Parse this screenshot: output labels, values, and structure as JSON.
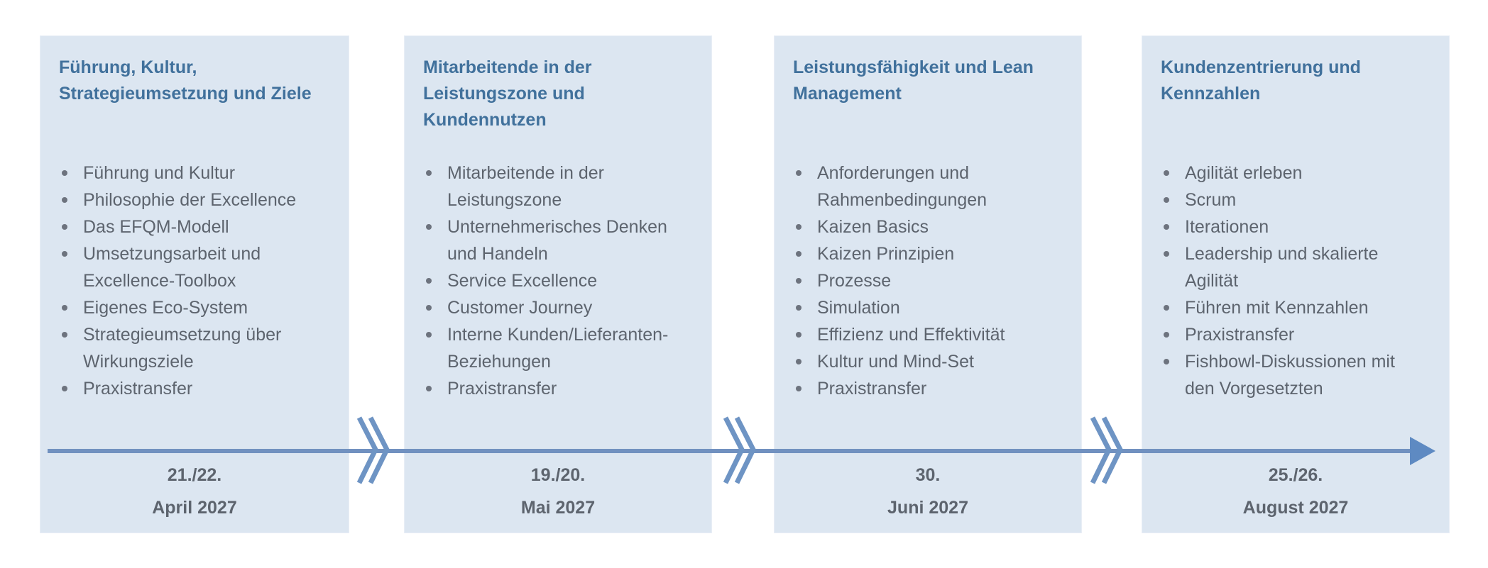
{
  "colors": {
    "box_fill": "#dce6f1",
    "box_border": "#e9eef6",
    "title_text": "#41719c",
    "body_text": "#5d646e",
    "bullet_dot": "#6d737e",
    "axis_line": "#7191c0",
    "axis_arrowhead": "#5e8ac2",
    "axis_break": "#6e94c4"
  },
  "axis": {
    "type": "timeline-arrow",
    "direction": "right",
    "break_marks": 3
  },
  "modules": [
    {
      "title": "Führung, Kultur, Strategieumsetzung und Ziele",
      "topics": [
        "Führung und Kultur",
        "Philosophie der Excellence",
        "Das EFQM-Modell",
        "Umsetzungsarbeit und Excellence-Toolbox",
        "Eigenes Eco-System",
        "Strategieumsetzung über Wirkungsziele",
        "Praxistransfer"
      ],
      "date_days": "21./22.",
      "date_month": "April 2027"
    },
    {
      "title": "Mitarbeitende in der Leistungszone und Kundennutzen",
      "topics": [
        "Mitarbeitende in der Leistungszone",
        "Unternehmerisches Denken und Handeln",
        "Service Excellence",
        "Customer Journey",
        "Interne Kunden/Lieferanten-Beziehungen",
        "Praxistransfer"
      ],
      "date_days": "19./20.",
      "date_month": "Mai 2027"
    },
    {
      "title": "Leistungsfähigkeit und Lean Management",
      "topics": [
        "Anforderungen und Rahmenbedingungen",
        "Kaizen Basics",
        "Kaizen Prinzipien",
        "Prozesse",
        "Simulation",
        "Effizienz und Effektivität",
        "Kultur und Mind-Set",
        "Praxistransfer"
      ],
      "date_days": "30.",
      "date_month": "Juni 2027"
    },
    {
      "title": "Kundenzentrierung und Kennzahlen",
      "topics": [
        "Agilität erleben",
        "Scrum",
        "Iterationen",
        "Leadership und skalierte Agilität",
        "Führen mit Kennzahlen",
        "Praxistransfer",
        "Fishbowl-Diskussionen mit den Vorgesetzten"
      ],
      "date_days": "25./26.",
      "date_month": "August 2027"
    }
  ]
}
